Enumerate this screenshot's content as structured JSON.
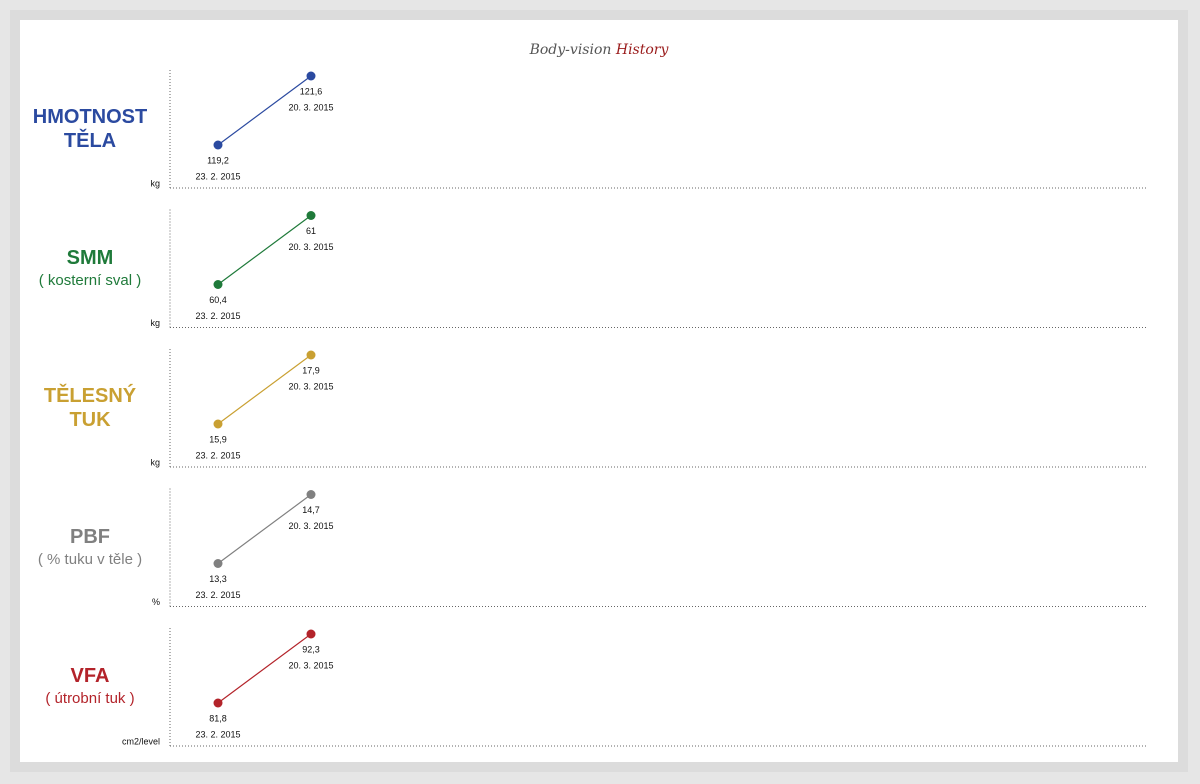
{
  "header": {
    "title": "Body-vision",
    "title_accent": "History"
  },
  "chart_data": [
    {
      "type": "line",
      "title": "HMOTNOST TĚLA",
      "y_label": "kg",
      "color": "#2b4aa0",
      "x": [
        "23. 2. 2015",
        "20. 3. 2015"
      ],
      "values": [
        119.2,
        121.6
      ],
      "value_labels": [
        "119,2",
        "121,6"
      ]
    },
    {
      "type": "line",
      "title": "SMM",
      "subtitle": "( kosterní sval )",
      "y_label": "kg",
      "color": "#1f7a3a",
      "x": [
        "23. 2. 2015",
        "20. 3. 2015"
      ],
      "values": [
        60.4,
        61
      ],
      "value_labels": [
        "60,4",
        "61"
      ]
    },
    {
      "type": "line",
      "title": "TĚLESNÝ TUK",
      "y_label": "kg",
      "color": "#c9a032",
      "x": [
        "23. 2. 2015",
        "20. 3. 2015"
      ],
      "values": [
        15.9,
        17.9
      ],
      "value_labels": [
        "15,9",
        "17,9"
      ]
    },
    {
      "type": "line",
      "title": "PBF",
      "subtitle": "( % tuku v těle )",
      "y_label": "%",
      "color": "#808080",
      "x": [
        "23. 2. 2015",
        "20. 3. 2015"
      ],
      "values": [
        13.3,
        14.7
      ],
      "value_labels": [
        "13,3",
        "14,7"
      ]
    },
    {
      "type": "line",
      "title": "VFA",
      "subtitle": "( útrobní tuk )",
      "y_label": "cm2/level",
      "color": "#b3232a",
      "x": [
        "23. 2. 2015",
        "20. 3. 2015"
      ],
      "values": [
        81.8,
        92.3
      ],
      "value_labels": [
        "81,8",
        "92,3"
      ]
    }
  ]
}
